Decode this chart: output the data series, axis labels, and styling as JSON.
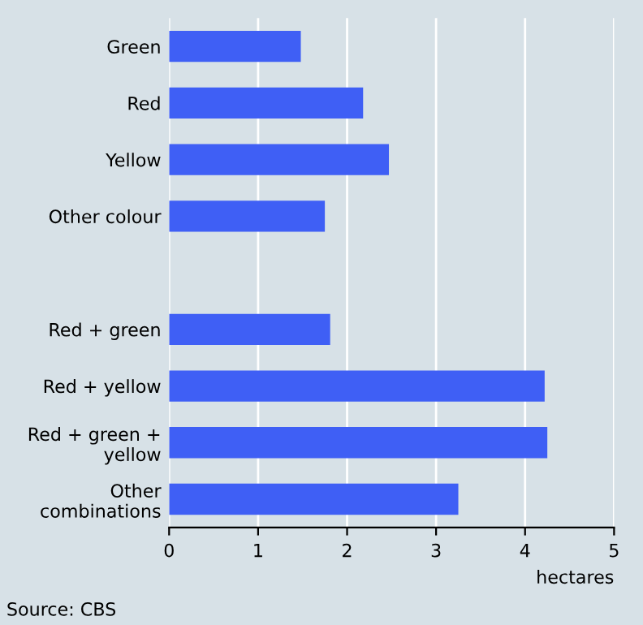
{
  "chart_data": {
    "type": "bar",
    "orientation": "horizontal",
    "categories": [
      "Green",
      "Red",
      "Yellow",
      "Other colour",
      null,
      "Red + green",
      "Red + yellow",
      "Red + green +\nyellow",
      "Other\ncombinations"
    ],
    "values": [
      1.48,
      2.18,
      2.47,
      1.75,
      null,
      1.81,
      4.22,
      4.25,
      3.25
    ],
    "color": "#3f5ff5",
    "xlim": [
      0,
      5
    ],
    "xticks": [
      0,
      1,
      2,
      3,
      4,
      5
    ],
    "xlabel": "hectares",
    "grid": "x",
    "annotations": [
      "Source: CBS"
    ]
  }
}
